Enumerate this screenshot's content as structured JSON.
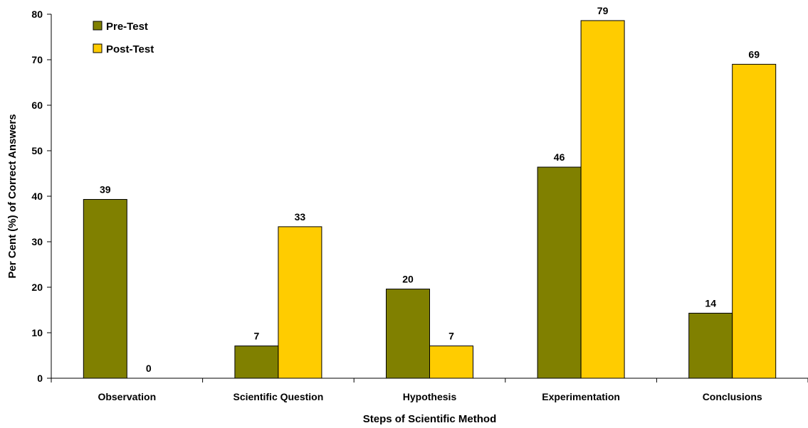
{
  "chart_data": {
    "type": "bar",
    "categories": [
      "Observation",
      "Scientific Question",
      "Hypothesis",
      "Experimentation",
      "Conclusions"
    ],
    "series": [
      {
        "name": "Pre-Test",
        "values": [
          39.3,
          7.1,
          19.6,
          46.4,
          14.3
        ],
        "labels": [
          "39",
          "7",
          "20",
          "46",
          "14"
        ],
        "color": "#808000"
      },
      {
        "name": "Post-Test",
        "values": [
          0,
          33.3,
          7.1,
          78.6,
          69.0
        ],
        "labels": [
          "0",
          "33",
          "7",
          "79",
          "69"
        ],
        "color": "#FFCC00"
      }
    ],
    "xlabel": "Steps of Scientific Method",
    "ylabel": "Per Cent (%) of Correct Answers",
    "ylim": [
      0,
      80
    ],
    "yticks": [
      0,
      10,
      20,
      30,
      40,
      50,
      60,
      70,
      80
    ],
    "grid": false,
    "legend_position": "top-left"
  }
}
